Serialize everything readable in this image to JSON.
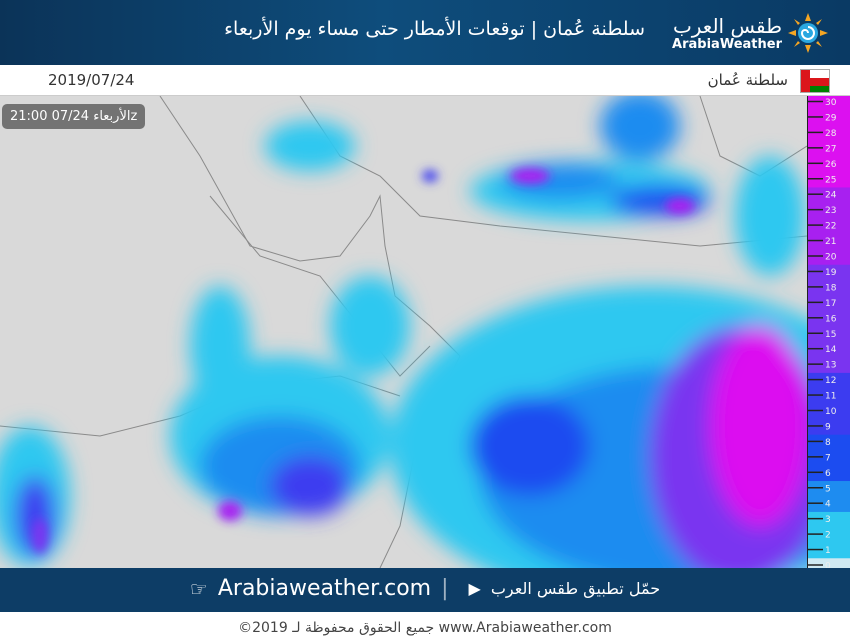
{
  "header": {
    "title": "سلطنة عُمان | توقعات الأمطار حتى مساء يوم الأربعاء",
    "logo_ar": "طقس العرب",
    "logo_en": "ArabiaWeather"
  },
  "info": {
    "date": "2019/07/24",
    "country": "سلطنة عُمان"
  },
  "map": {
    "timestamp": "الأربعاء 07/24 21:00z",
    "land_color": "#d9d9d9"
  },
  "legend": {
    "ticks": [
      "0",
      "1",
      "2",
      "3",
      "4",
      "5",
      "6",
      "7",
      "8",
      "9",
      "10",
      "11",
      "12",
      "13",
      "14",
      "15",
      "16",
      "17",
      "18",
      "19",
      "20",
      "21",
      "22",
      "23",
      "24",
      "25",
      "26",
      "27",
      "28",
      "29",
      "30"
    ],
    "colors": {
      "0": "#cfe9f2",
      "1": "#2ec8f0",
      "4": "#1e8cf0",
      "6": "#1c4cf0",
      "9": "#3c3cf0",
      "13": "#7a34f0",
      "20": "#a820f0",
      "25": "#dc10f0"
    }
  },
  "footer": {
    "download": "حمّل تطبيق طقس العرب",
    "site": "Arabiaweather.com",
    "copyright": "©2019 جميع الحقوق محفوظة لـ www.Arabiaweather.com"
  }
}
